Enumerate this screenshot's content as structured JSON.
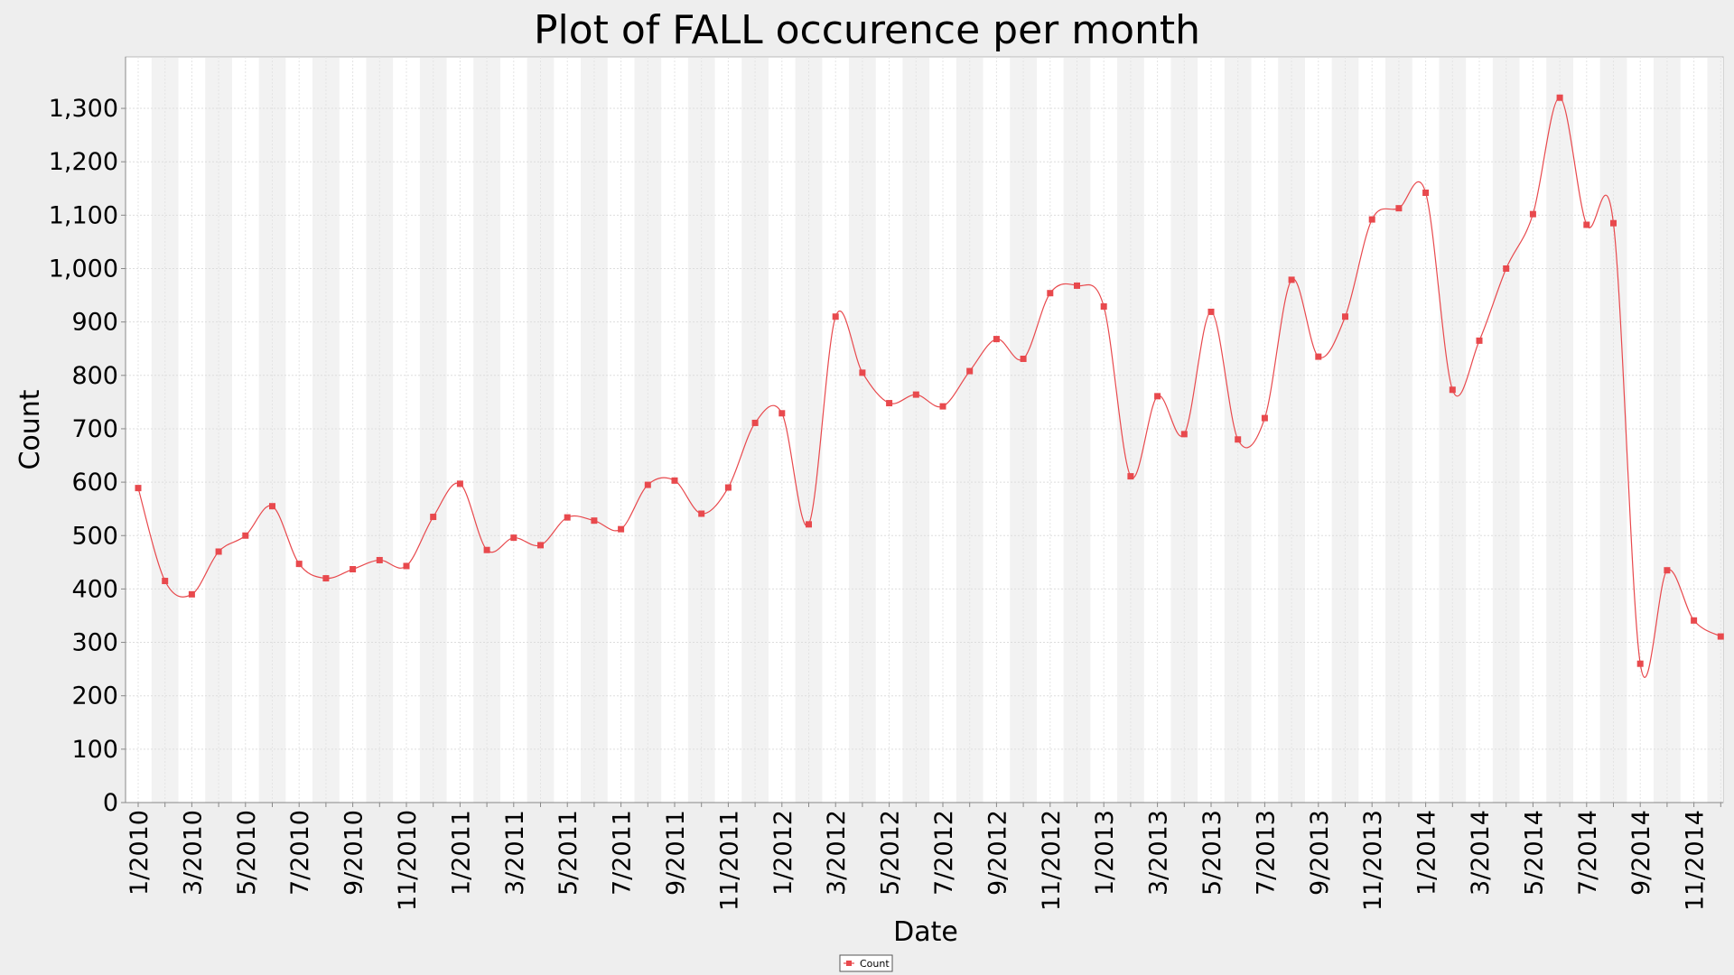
{
  "chart_data": {
    "type": "line",
    "title": "Plot of FALL occurence per month",
    "xlabel": "Date",
    "ylabel": "Count",
    "ylim": [
      0,
      1400
    ],
    "yticks": [
      0,
      100,
      200,
      300,
      400,
      500,
      600,
      700,
      800,
      900,
      1000,
      1100,
      1200,
      1300
    ],
    "ytick_labels": [
      "0",
      "100",
      "200",
      "300",
      "400",
      "500",
      "600",
      "700",
      "800",
      "900",
      "1,000",
      "1,100",
      "1,200",
      "1,300"
    ],
    "xtick_labels": [
      "1/2010",
      "3/2010",
      "5/2010",
      "7/2010",
      "9/2010",
      "11/2010",
      "1/2011",
      "3/2011",
      "5/2011",
      "7/2011",
      "9/2011",
      "11/2011",
      "1/2012",
      "3/2012",
      "5/2012",
      "7/2012",
      "9/2012",
      "11/2012",
      "1/2013",
      "3/2013",
      "5/2013",
      "7/2013",
      "9/2013",
      "11/2013",
      "1/2014",
      "3/2014",
      "5/2014",
      "7/2014",
      "9/2014",
      "11/2014"
    ],
    "x": [
      "1/2010",
      "2/2010",
      "3/2010",
      "4/2010",
      "5/2010",
      "6/2010",
      "7/2010",
      "8/2010",
      "9/2010",
      "10/2010",
      "11/2010",
      "12/2010",
      "1/2011",
      "2/2011",
      "3/2011",
      "4/2011",
      "5/2011",
      "6/2011",
      "7/2011",
      "8/2011",
      "9/2011",
      "10/2011",
      "11/2011",
      "12/2011",
      "1/2012",
      "2/2012",
      "3/2012",
      "4/2012",
      "5/2012",
      "6/2012",
      "7/2012",
      "8/2012",
      "9/2012",
      "10/2012",
      "11/2012",
      "12/2012",
      "1/2013",
      "2/2013",
      "3/2013",
      "4/2013",
      "5/2013",
      "6/2013",
      "7/2013",
      "8/2013",
      "9/2013",
      "10/2013",
      "11/2013",
      "12/2013",
      "1/2014",
      "2/2014",
      "3/2014",
      "4/2014",
      "5/2014",
      "6/2014",
      "7/2014",
      "8/2014",
      "9/2014",
      "10/2014",
      "11/2014",
      "12/2014"
    ],
    "series": [
      {
        "name": "Count",
        "color": "#e8494d",
        "values": [
          589,
          415,
          390,
          470,
          500,
          555,
          447,
          420,
          437,
          454,
          443,
          535,
          597,
          473,
          496,
          482,
          534,
          528,
          512,
          595,
          603,
          541,
          590,
          711,
          729,
          521,
          910,
          805,
          748,
          764,
          742,
          808,
          868,
          831,
          954,
          968,
          929,
          611,
          761,
          690,
          919,
          680,
          720,
          979,
          835,
          910,
          1092,
          1113,
          1142,
          773,
          865,
          1000,
          1102,
          1320,
          1082,
          1085,
          260,
          435,
          341,
          311
        ]
      }
    ],
    "legend": {
      "position": "bottom-center",
      "entries": [
        "Count"
      ]
    },
    "grid": true
  }
}
